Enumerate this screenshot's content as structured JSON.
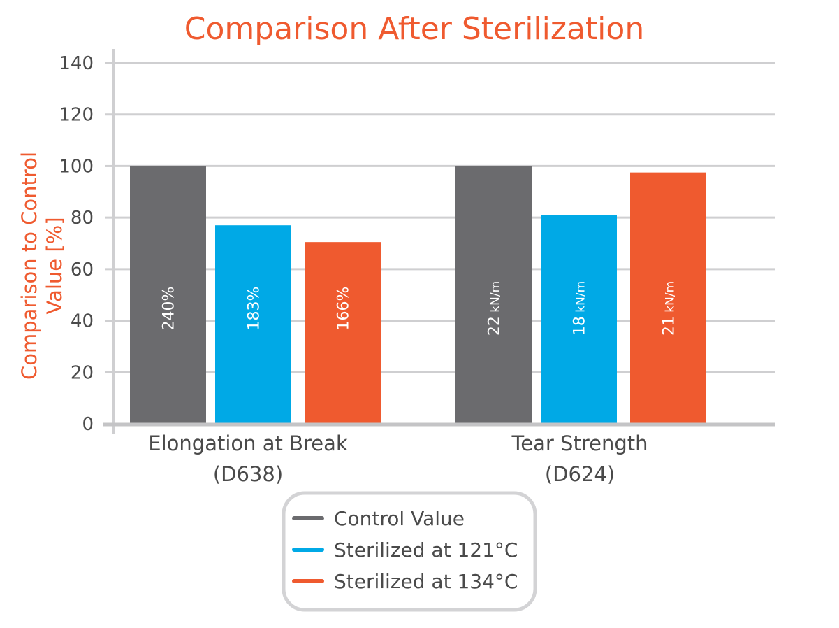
{
  "chart_data": {
    "type": "bar",
    "title": "Comparison After Sterilization",
    "ylabel_lines": [
      "Comparison to Control",
      "Value [%]"
    ],
    "xlabel": "",
    "ylim": [
      0,
      140
    ],
    "yticks": [
      0,
      20,
      40,
      60,
      80,
      100,
      120,
      140
    ],
    "grid": true,
    "legend_position": "bottom-center",
    "categories": [
      [
        "Elongation at Break",
        "(D638)"
      ],
      [
        "Tear Strength",
        "(D624)"
      ]
    ],
    "series": [
      {
        "name": "Control Value",
        "color": "#6b6b6e",
        "values": [
          100,
          100
        ],
        "bar_labels": [
          {
            "value": "240%",
            "unit": ""
          },
          {
            "value": "22",
            "unit": "kN/m"
          }
        ]
      },
      {
        "name": "Sterilized at 121°C",
        "color": "#00a9e6",
        "values": [
          77,
          81
        ],
        "bar_labels": [
          {
            "value": "183%",
            "unit": ""
          },
          {
            "value": "18",
            "unit": "kN/m"
          }
        ]
      },
      {
        "name": "Sterilized at 134°C",
        "color": "#ef5a2f",
        "values": [
          70.5,
          97.5
        ],
        "bar_labels": [
          {
            "value": "166%",
            "unit": ""
          },
          {
            "value": "21",
            "unit": "kN/m"
          }
        ]
      }
    ]
  }
}
